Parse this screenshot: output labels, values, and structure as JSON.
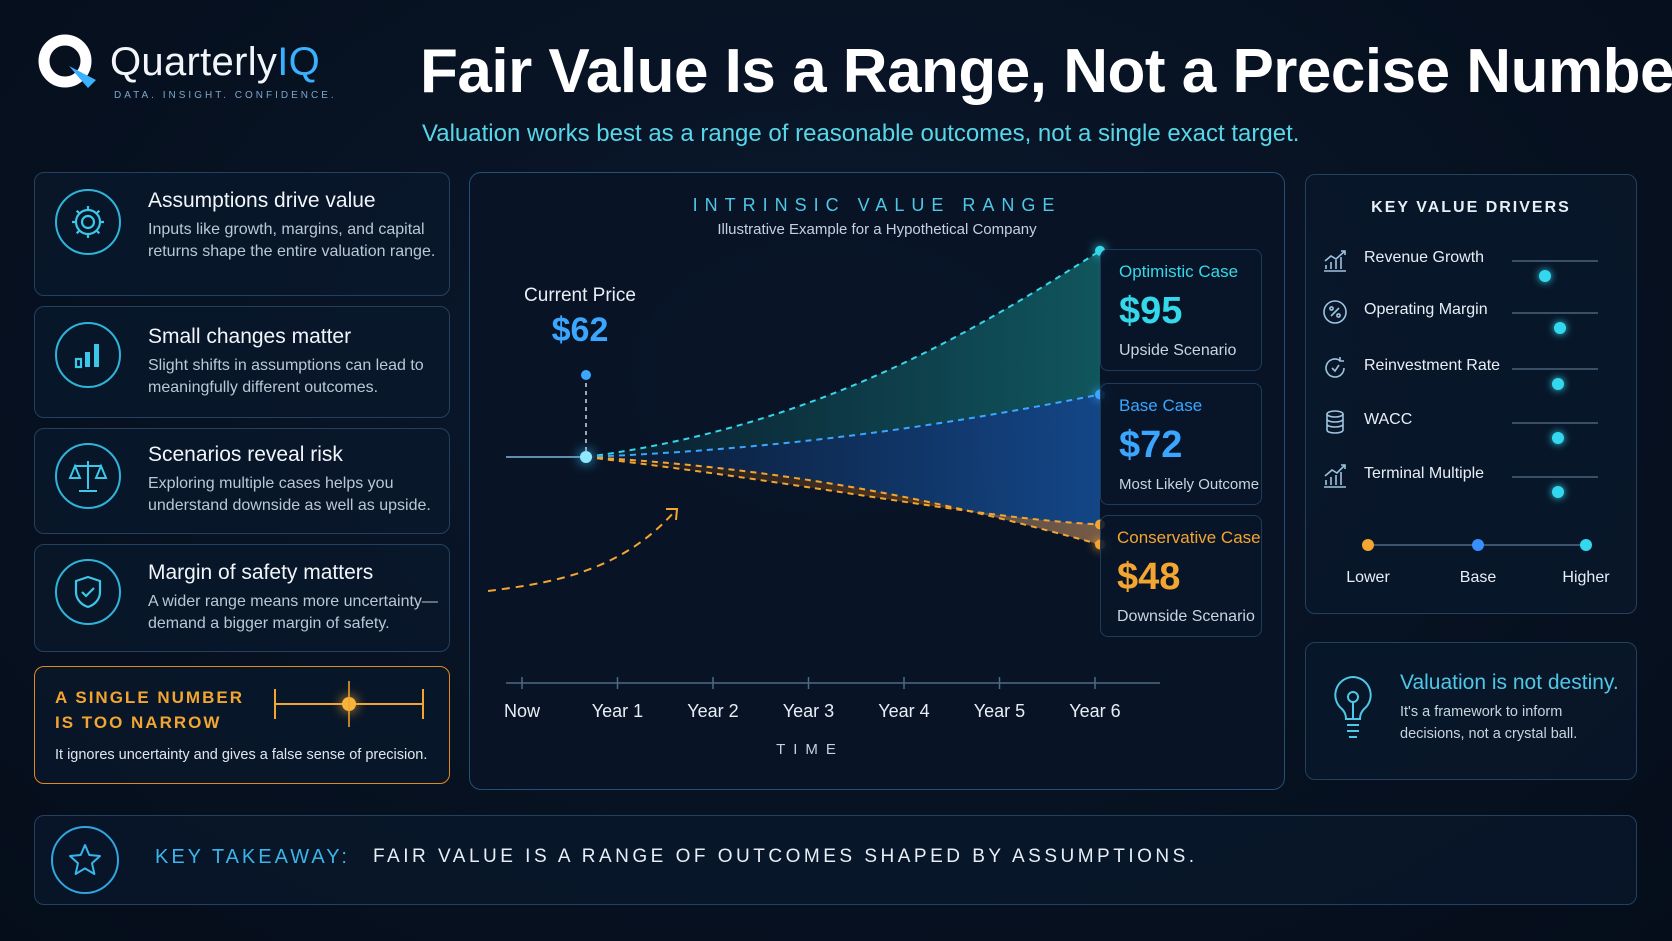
{
  "brand": {
    "name_main": "Quarterly",
    "name_accent": "IQ",
    "tagline": "DATA. INSIGHT. CONFIDENCE."
  },
  "header": {
    "title": "Fair Value Is a Range, Not a Precise Number",
    "subtitle": "Valuation works best as a range of reasonable outcomes, not a single exact target."
  },
  "left_cards": [
    {
      "title": "Assumptions drive value",
      "desc": "Inputs like growth, margins, and capital returns shape the entire valuation range.",
      "icon": "gear-icon"
    },
    {
      "title": "Small changes matter",
      "desc": "Slight shifts in assumptions can lead to meaningfully different outcomes.",
      "icon": "bar-chart-icon"
    },
    {
      "title": "Scenarios reveal risk",
      "desc": "Exploring multiple cases helps you understand downside as well as upside.",
      "icon": "scales-icon"
    },
    {
      "title": "Margin of safety matters",
      "desc": "A wider range means more uncertainty—demand a bigger margin of safety.",
      "icon": "shield-check-icon"
    }
  ],
  "warning": {
    "title_line1": "A SINGLE NUMBER",
    "title_line2": "IS TOO NARROW",
    "desc": "It ignores uncertainty and gives a false sense of precision."
  },
  "chart_data": {
    "type": "line",
    "title": "INTRINSIC VALUE RANGE",
    "subtitle": "Illustrative Example for a Hypothetical Company",
    "xlabel": "TIME",
    "categories": [
      "Now",
      "Year 1",
      "Year 2",
      "Year 3",
      "Year 4",
      "Year 5",
      "Year 6"
    ],
    "current_price": {
      "label": "Current Price",
      "value_text": "$62",
      "value": 62
    },
    "series": [
      {
        "name": "Optimistic Case",
        "value_text": "$95",
        "end_value": 95,
        "note": "Upside Scenario",
        "color": "#35d8e8"
      },
      {
        "name": "Base Case",
        "value_text": "$72",
        "end_value": 72,
        "note": "Most Likely Outcome",
        "color": "#3aa6ff"
      },
      {
        "name": "Conservative Case",
        "value_text": "$48",
        "end_value": 48,
        "note": "Downside Scenario",
        "color": "#f3a531"
      }
    ]
  },
  "drivers": {
    "title": "KEY VALUE DRIVERS",
    "items": [
      {
        "label": "Revenue Growth",
        "level": 0.38,
        "icon": "growth-chart-icon"
      },
      {
        "label": "Operating Margin",
        "level": 0.56,
        "icon": "percent-icon"
      },
      {
        "label": "Reinvestment Rate",
        "level": 0.54,
        "icon": "cycle-arrow-icon"
      },
      {
        "label": "WACC",
        "level": 0.54,
        "icon": "coin-stack-icon"
      },
      {
        "label": "Terminal Multiple",
        "level": 0.54,
        "icon": "growth-bars-icon"
      }
    ],
    "scale": {
      "low": "Lower",
      "mid": "Base",
      "high": "Higher"
    },
    "colors": {
      "low": "#f3a531",
      "mid": "#3a8fff",
      "high": "#33d8ef"
    }
  },
  "note_card": {
    "title": "Valuation is not destiny.",
    "desc": "It's a framework to inform decisions, not a crystal ball."
  },
  "takeaway": {
    "label": "KEY TAKEAWAY:",
    "text": "FAIR VALUE IS A RANGE OF OUTCOMES SHAPED BY ASSUMPTIONS."
  }
}
